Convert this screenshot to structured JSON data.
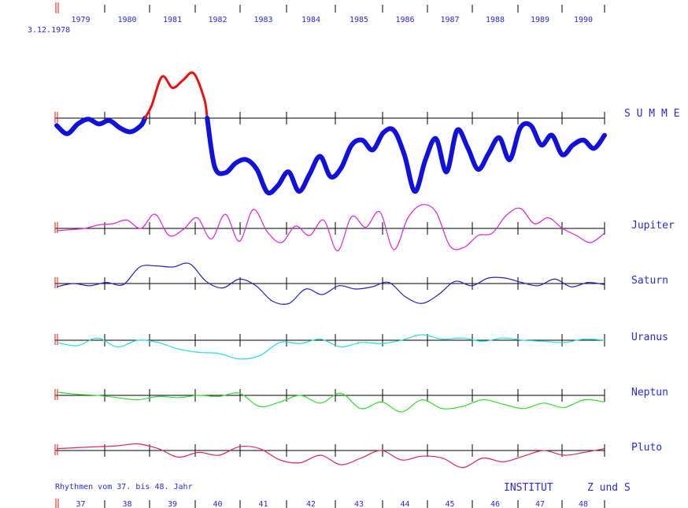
{
  "header": {
    "start_date": "3.12.1978"
  },
  "footer": {
    "rhythm_text": "Rhythmen vom 37. bis 48. Jahr",
    "institut": "INSTITUT",
    "z_und_s": "Z und S"
  },
  "chart_data": {
    "type": "line",
    "top_axis_years": [
      "1979",
      "1980",
      "1981",
      "1982",
      "1983",
      "1984",
      "1985",
      "1986",
      "1987",
      "1988",
      "1989",
      "1990"
    ],
    "bottom_axis_ages": [
      "37",
      "38",
      "39",
      "40",
      "41",
      "42",
      "43",
      "44",
      "45",
      "46",
      "47",
      "48"
    ],
    "colors": {
      "text": "#2b2bd6",
      "summe_positive": "#ee1111",
      "summe_negative": "#1111dd",
      "axis": "#000000",
      "start_marker": "#ee1111"
    },
    "panels": [
      {
        "label": "S U M M E",
        "color": "#1111dd",
        "thick": true,
        "values": [
          -0.15,
          -0.32,
          -0.12,
          -0.02,
          -0.12,
          -0.05,
          -0.2,
          -0.28,
          -0.15,
          0.25,
          0.85,
          0.62,
          0.78,
          0.92,
          0.4,
          -1.0,
          -1.12,
          -0.92,
          -0.85,
          -1.05,
          -1.52,
          -1.38,
          -1.1,
          -1.5,
          -1.15,
          -0.78,
          -1.2,
          -1.02,
          -0.55,
          -0.45,
          -0.65,
          -0.3,
          -0.25,
          -0.75,
          -1.5,
          -0.85,
          -0.42,
          -1.1,
          -0.25,
          -0.6,
          -1.05,
          -0.72,
          -0.4,
          -0.85,
          -0.2,
          -0.15,
          -0.55,
          -0.35,
          -0.75,
          -0.55,
          -0.45,
          -0.62,
          -0.35
        ]
      },
      {
        "label": "Jupiter",
        "color": "#dd22dd",
        "thick": false,
        "values": [
          -0.1,
          -0.05,
          0.0,
          0.15,
          0.2,
          0.35,
          0.0,
          0.6,
          -0.3,
          -0.05,
          0.45,
          -0.45,
          0.6,
          -0.55,
          0.8,
          -0.15,
          -0.6,
          0.1,
          -0.3,
          0.35,
          -0.95,
          0.5,
          0.05,
          0.7,
          -0.9,
          0.45,
          1.0,
          0.7,
          -0.75,
          -0.8,
          -0.3,
          -0.2,
          0.55,
          0.85,
          0.2,
          0.45,
          0.0,
          -0.3,
          -0.6,
          -0.2
        ]
      },
      {
        "label": "Saturn",
        "color": "#2222bb",
        "thick": false,
        "values": [
          -0.15,
          0.0,
          -0.1,
          0.05,
          -0.05,
          0.75,
          0.8,
          0.75,
          0.9,
          0.1,
          -0.2,
          0.2,
          -0.1,
          -0.8,
          -0.9,
          -0.25,
          -0.5,
          -0.1,
          -0.25,
          -0.15,
          0.05,
          -0.6,
          -0.9,
          -0.5,
          0.1,
          -0.1,
          0.25,
          0.25,
          0.05,
          -0.1,
          0.2,
          -0.15,
          0.05,
          -0.05
        ]
      },
      {
        "label": "Uranus",
        "color": "#22dddd",
        "thick": false,
        "values": [
          -0.1,
          -0.25,
          0.1,
          -0.3,
          0.0,
          -0.1,
          -0.4,
          -0.55,
          -0.6,
          -0.85,
          -0.7,
          -0.1,
          -0.15,
          0.05,
          -0.3,
          -0.1,
          -0.15,
          0.0,
          0.25,
          0.05,
          0.1,
          -0.05,
          0.1,
          0.0,
          -0.05,
          -0.1,
          0.05,
          0.0
        ]
      },
      {
        "label": "Neptun",
        "color": "#33dd33",
        "thick": false,
        "values": [
          0.15,
          0.05,
          0.0,
          -0.1,
          -0.2,
          -0.05,
          -0.1,
          0.0,
          -0.05,
          0.1,
          -0.5,
          -0.3,
          0.0,
          -0.35,
          0.1,
          -0.6,
          -0.3,
          -0.75,
          -0.2,
          -0.6,
          -0.5,
          -0.2,
          -0.4,
          -0.6,
          -0.35,
          -0.55,
          -0.2,
          -0.3
        ]
      },
      {
        "label": "Pluto",
        "color": "#dd2266",
        "thick": false,
        "values": [
          0.1,
          0.15,
          0.2,
          0.25,
          0.35,
          0.1,
          -0.35,
          -0.1,
          -0.25,
          0.2,
          0.1,
          -0.5,
          -0.65,
          -0.25,
          -0.75,
          -0.4,
          0.0,
          -0.5,
          -0.3,
          -0.4,
          -0.9,
          -0.4,
          -0.6,
          -0.3,
          0.0,
          -0.25,
          -0.1,
          0.1
        ]
      }
    ]
  }
}
